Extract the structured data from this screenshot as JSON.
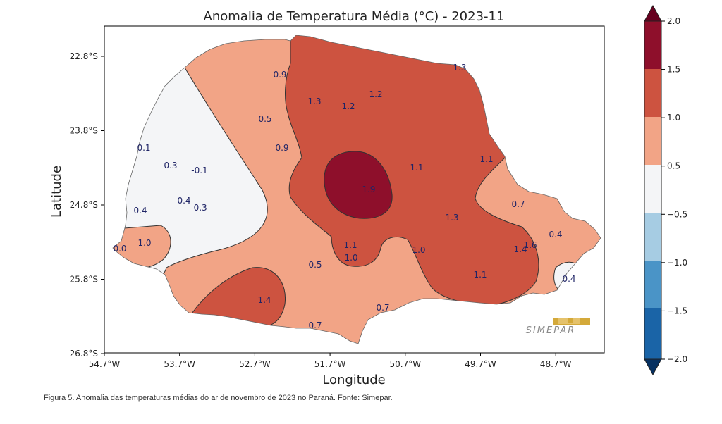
{
  "title": "Anomalia de Temperatura Média (°C) - 2023-11",
  "xlabel": "Longitude",
  "ylabel": "Latitude",
  "x_ticks": [
    "54.7°W",
    "53.7°W",
    "52.7°W",
    "51.7°W",
    "50.7°W",
    "49.7°W",
    "48.7°W"
  ],
  "y_ticks": [
    "22.8°S",
    "23.8°S",
    "24.8°S",
    "25.8°S",
    "26.8°S"
  ],
  "colorbar": {
    "ticks": [
      "2.0",
      "1.5",
      "1.0",
      "0.5",
      "−0.5",
      "−1.0",
      "−1.5",
      "−2.0"
    ],
    "colors": {
      "above_2_0": "#67001f",
      "c_1_5_2_0": "#8e0f2b",
      "c_1_0_1_5": "#cd5340",
      "c_0_5_1_0": "#f2a486",
      "c_n0_5_0_5": "#f4f5f7",
      "c_n1_0_n0_5": "#a6cce3",
      "c_n1_5_n1_0": "#4a94c7",
      "c_n2_0_n1_5": "#1a64a7",
      "below_n2_0": "#053061"
    }
  },
  "contour_labels": [
    "0.9",
    "1.3",
    "1.2",
    "1.2",
    "1.3",
    "0.5",
    "0.9",
    "0.1",
    "0.3",
    "-0.1",
    "0.4",
    "-0.3",
    "0.4",
    "1.1",
    "1.1",
    "1.9",
    "0.7",
    "1.3",
    "0.0",
    "1.0",
    "0.4",
    "1.1",
    "1.0",
    "1.0",
    "1.4",
    "1.6",
    "0.5",
    "0.4",
    "1.1",
    "1.4",
    "0.7",
    "0.7"
  ],
  "logo_text": "SIMEPAR",
  "caption": "Figura 5. Anomalia das temperaturas médias do ar de novembro de 2023 no Paraná. Fonte: Simepar."
}
